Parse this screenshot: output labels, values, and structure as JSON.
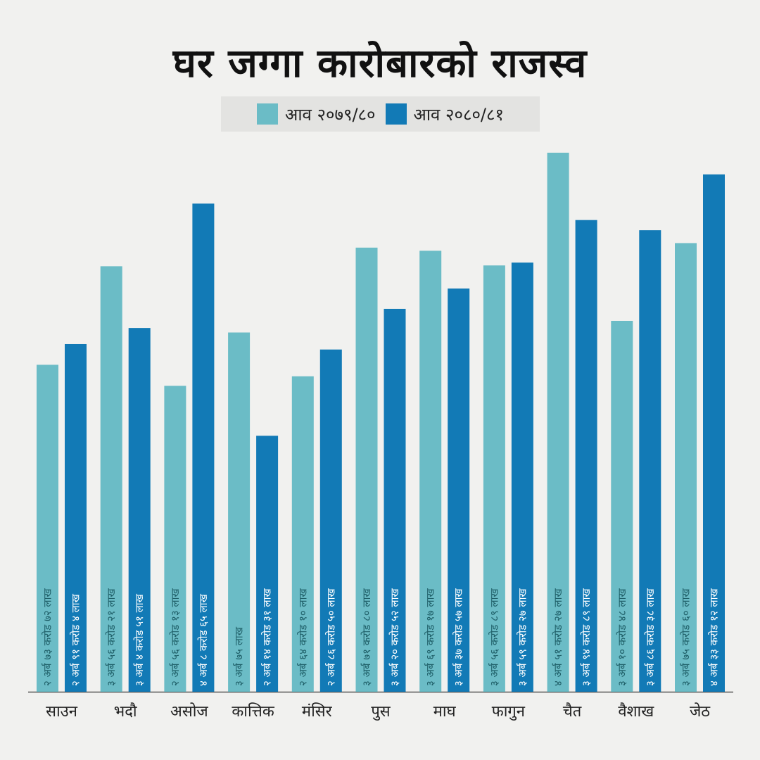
{
  "title": "घर जग्गा कारोबारको राजस्व",
  "colors": {
    "series1": "#6bbcc6",
    "series2": "#127ab6",
    "axis": "#555555"
  },
  "chart_data": {
    "type": "bar",
    "title": "घर जग्गा कारोबारको राजस्व",
    "xlabel": "",
    "ylabel": "",
    "grid": false,
    "legend_position": "top-center",
    "unit": "अर्ब (billion NPR)",
    "categories": [
      "साउन",
      "भदौ",
      "असोज",
      "कात्तिक",
      "मंसिर",
      "पुस",
      "माघ",
      "फागुन",
      "चैत",
      "वैशाख",
      "जेठ"
    ],
    "series": [
      {
        "name": "आव २०७९/८०",
        "values": [
          2.7372,
          3.5621,
          2.5613,
          3.0075,
          2.641,
          3.718,
          3.6917,
          3.5689,
          4.5127,
          3.1048,
          3.756
        ],
        "labels": [
          "२ अर्ब ७३ करोड ७२ लाख",
          "३ अर्ब ५६ करोड २१ लाख",
          "२ अर्ब ५६ करोड १३ लाख",
          "३ अर्ब ७५ लाख",
          "२ अर्ब ६४ करोड १० लाख",
          "३ अर्ब ७१ करोड ८० लाख",
          "३ अर्ब ६९ करोड १७ लाख",
          "३ अर्ब ५६ करोड ८९ लाख",
          "४ अर्ब ५१ करोड २७ लाख",
          "३ अर्ब १० करोड ४८ लाख",
          "३ अर्ब ७५ करोड ६० लाख"
        ]
      },
      {
        "name": "आव २०८०/८१",
        "values": [
          2.9104,
          3.0451,
          4.0865,
          2.1431,
          2.865,
          3.2052,
          3.3757,
          3.5927,
          3.9489,
          3.8638,
          4.3312
        ],
        "labels": [
          "२ अर्ब ९१ करोड ४ लाख",
          "३ अर्ब ४ करोड ५१ लाख",
          "४ अर्ब ८ करोड ६५ लाख",
          "२ अर्ब १४ करोड ३१ लाख",
          "२ अर्ब ८६ करोड ५० लाख",
          "३ अर्ब २० करोड ५२ लाख",
          "३ अर्ब ३७ करोड ५७ लाख",
          "३ अर्ब ५९ करोड २७ लाख",
          "३ अर्ब ९४ करोड ८९ लाख",
          "३ अर्ब ८६ करोड ३८ लाख",
          "४ अर्ब ३३ करोड १२ लाख"
        ]
      }
    ]
  }
}
